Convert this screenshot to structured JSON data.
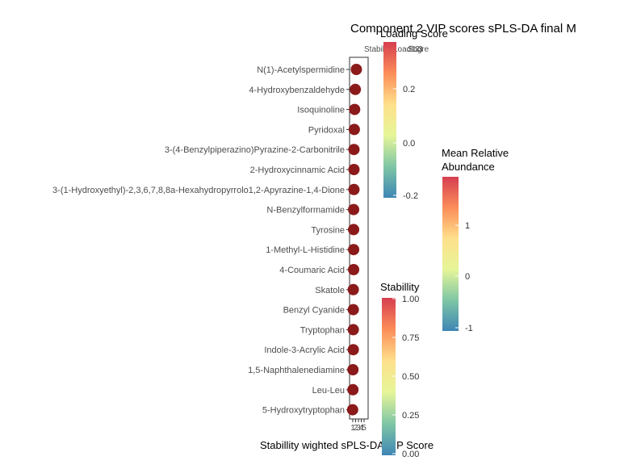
{
  "chart_data": {
    "type": "scatter",
    "title": "Component 2 VIP scores sPLS-DA final M",
    "xlabel": "Stabillity wighted sPLS-DA VIP Score",
    "ylabel": "",
    "x_ticks": [
      "1",
      "2",
      "3",
      "4",
      "5"
    ],
    "facet_strip_label": "Stabillity",
    "overlapping_strip_labels": [
      "Loading",
      "Score",
      "1",
      "2",
      "3"
    ],
    "categories": [
      "N(1)-Acetylspermidine",
      "4-Hydroxybenzaldehyde",
      "Isoquinoline",
      "Pyridoxal",
      "3-(4-Benzylpiperazino)Pyrazine-2-Carbonitrile",
      "2-Hydroxycinnamic Acid",
      "3-(1-Hydroxyethyl)-2,3,6,7,8,8a-Hexahydropyrrolo1,2-Apyrazine-1,4-Dione",
      "N-Benzylformamide",
      "Tyrosine",
      "1-Methyl-L-Histidine",
      "4-Coumaric Acid",
      "Skatole",
      "Benzyl Cyanide",
      "Tryptophan",
      "Indole-3-Acrylic Acid",
      "1,5-Naphthalenediamine",
      "Leu-Leu",
      "5-Hydroxytryptophan"
    ],
    "values": [
      2.9,
      2.6,
      2.4,
      2.3,
      2.2,
      2.2,
      2.2,
      2.1,
      2.1,
      2.1,
      2.1,
      2.0,
      2.0,
      2.0,
      2.0,
      1.9,
      1.9,
      1.8
    ],
    "point_color": "#8B1A1A",
    "legends": [
      {
        "title": "Loading Score",
        "ticks": [
          "0.2",
          "0.0",
          "-0.2"
        ]
      },
      {
        "title_lines": [
          "Mean Relative",
          "Abundance"
        ],
        "ticks": [
          "1",
          "0",
          "-1"
        ]
      },
      {
        "title": "Stabillity",
        "ticks": [
          "1.00",
          "0.75",
          "0.50",
          "0.25",
          "0.00"
        ]
      }
    ],
    "colorscale": [
      "#3E86B5",
      "#7FC6A5",
      "#E6F598",
      "#FEE08B",
      "#FC8D59",
      "#D53E4F"
    ],
    "grid": false
  }
}
